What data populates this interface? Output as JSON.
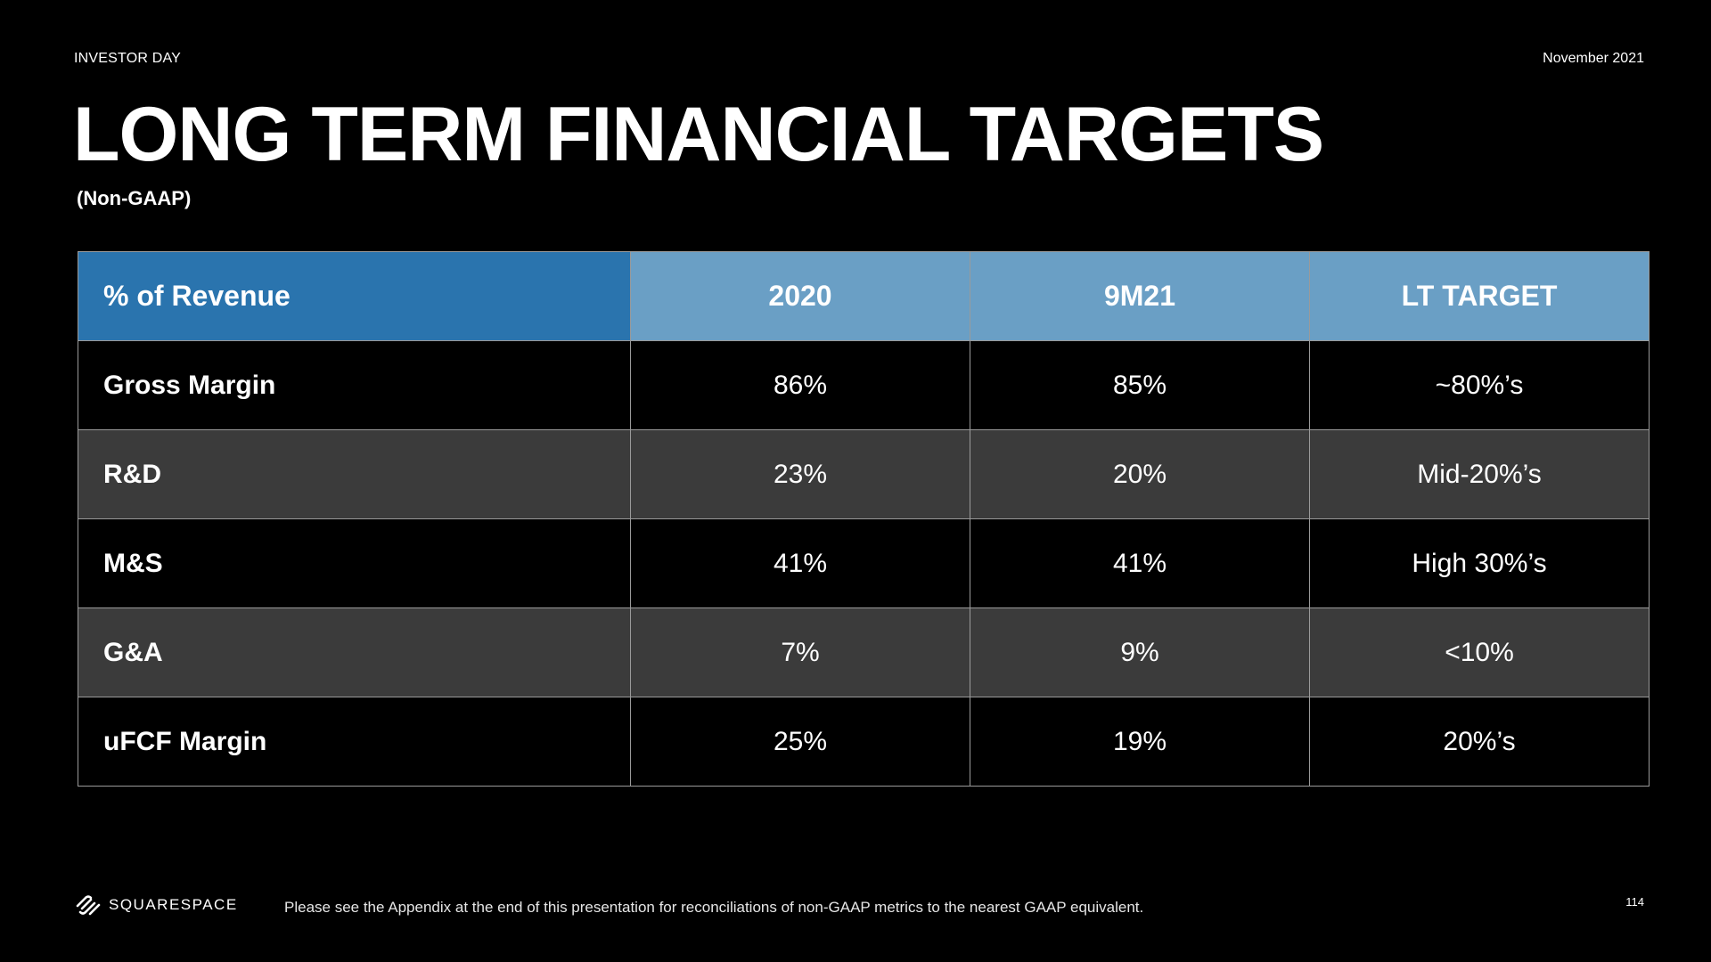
{
  "header": {
    "eyebrow": "INVESTOR DAY",
    "date": "November 2021",
    "title": "LONG TERM FINANCIAL TARGETS",
    "subtitle": "(Non-GAAP)"
  },
  "table": {
    "columns": [
      "% of Revenue",
      "2020",
      "9M21",
      "LT TARGET"
    ],
    "rows": [
      {
        "label": "Gross Margin",
        "values": [
          "86%",
          "85%",
          "~80%’s"
        ]
      },
      {
        "label": "R&D",
        "values": [
          "23%",
          "20%",
          "Mid-20%’s"
        ]
      },
      {
        "label": "M&S",
        "values": [
          "41%",
          "41%",
          "High 30%’s"
        ]
      },
      {
        "label": "G&A",
        "values": [
          "7%",
          "9%",
          "<10%"
        ]
      },
      {
        "label": "uFCF Margin",
        "values": [
          "25%",
          "19%",
          "20%’s"
        ]
      }
    ]
  },
  "footer": {
    "logo_icon": "squarespace-logo-icon",
    "logo_text": "SQUARESPACE",
    "note": "Please see the Appendix at the end of this presentation for reconciliations of non-GAAP metrics to the nearest GAAP equivalent.",
    "page_number": "114"
  },
  "colors": {
    "background": "#000000",
    "header_label_bg": "#2a74ae",
    "header_col_bg": "#6a9fc5",
    "row_alt_bg": "#3b3b3b",
    "text": "#ffffff"
  }
}
